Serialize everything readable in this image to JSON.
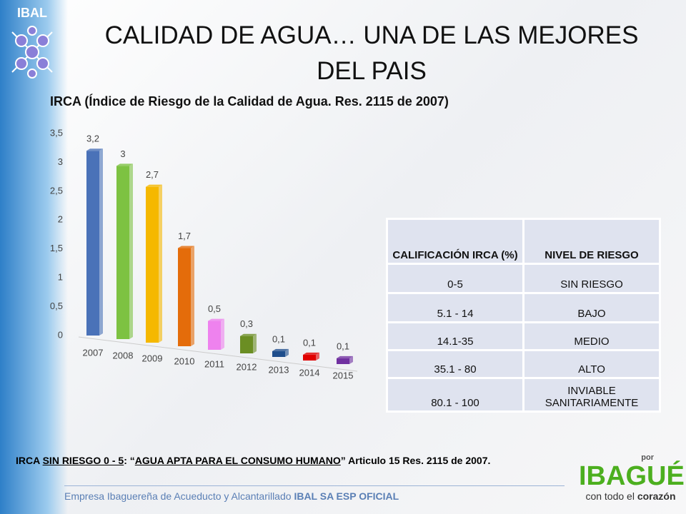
{
  "header": {
    "logo": "IBAL",
    "title": "CALIDAD DE AGUA… UNA DE LAS MEJORES DEL PAIS"
  },
  "chart_data": {
    "type": "bar",
    "title": "IRCA (Índice de Riesgo de la Calidad de Agua. Res. 2115 de 2007)",
    "categories": [
      "2007",
      "2008",
      "2009",
      "2010",
      "2011",
      "2012",
      "2013",
      "2014",
      "2015"
    ],
    "values": [
      3.2,
      3,
      2.7,
      1.7,
      0.5,
      0.3,
      0.1,
      0.1,
      0.1
    ],
    "value_labels": [
      "3,2",
      "3",
      "2,7",
      "1,7",
      "0,5",
      "0,3",
      "0,1",
      "0,1",
      "0,1"
    ],
    "colors": [
      "#4a72b8",
      "#7dc242",
      "#f5b800",
      "#e46c0a",
      "#ee82ee",
      "#6b8e23",
      "#1f4e8c",
      "#e00000",
      "#7030a0"
    ],
    "ylim": [
      0,
      3.5
    ],
    "yticks": [
      0,
      {
        "value": 0.5,
        "label": "0,5"
      },
      1,
      {
        "value": 1.5,
        "label": "1,5"
      },
      2,
      {
        "value": 2.5,
        "label": "2,5"
      },
      3,
      {
        "value": 3.5,
        "label": "3,5"
      }
    ]
  },
  "table": {
    "header": [
      "CALIFICACIÓN IRCA (%)",
      "NIVEL DE RIESGO"
    ],
    "rows": [
      [
        "0-5",
        "SIN RIESGO"
      ],
      [
        "5.1 - 14",
        "BAJO"
      ],
      [
        "14.1-35",
        "MEDIO"
      ],
      [
        "35.1 - 80",
        "ALTO"
      ],
      [
        "80.1 - 100",
        "INVIABLE SANITARIAMENTE"
      ]
    ]
  },
  "footnote": [
    "IRCA ",
    "SIN RIESGO 0 - 5",
    ":  “",
    "AGUA APTA PARA EL CONSUMO HUMANO",
    "” Articulo 15 Res. 2115 de 2007."
  ],
  "footer": {
    "text": "Empresa Ibaguereña de Acueducto y Alcantarillado ",
    "bold": "IBAL SA ESP OFICIAL"
  },
  "brand": {
    "top": "por",
    "name": "IBAGUÉ",
    "tagline": "con todo el ",
    "tagline_bold": "corazón"
  }
}
